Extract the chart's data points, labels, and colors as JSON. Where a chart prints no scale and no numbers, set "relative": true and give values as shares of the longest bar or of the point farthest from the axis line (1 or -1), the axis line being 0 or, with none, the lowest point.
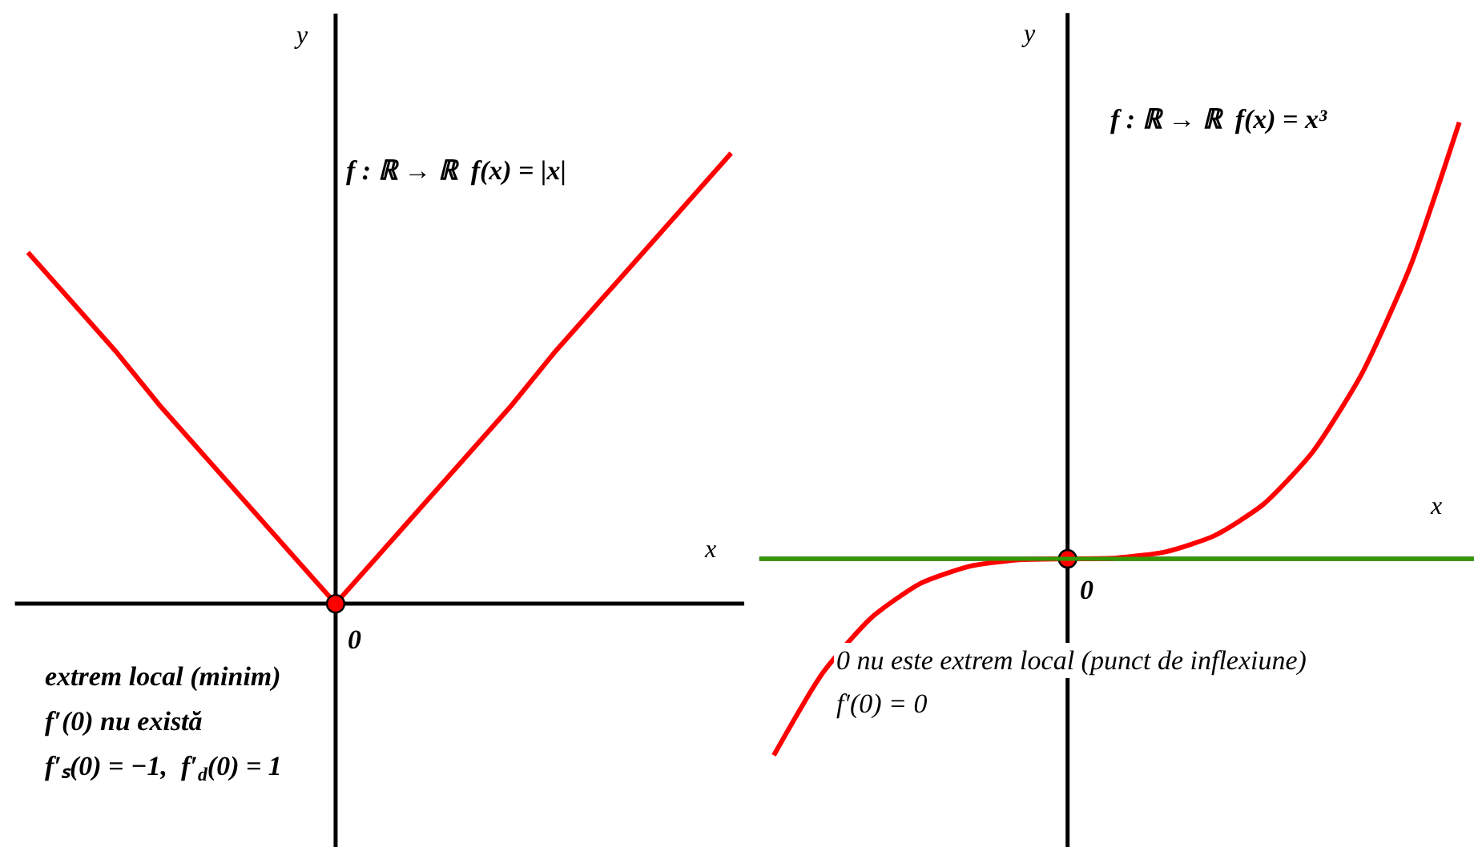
{
  "chart_data": [
    {
      "type": "line",
      "title": "f : ℝ → ℝ  f(x) = |x|",
      "xlabel": "x",
      "ylabel": "y",
      "relative": true,
      "grid": false,
      "categories": [
        null,
        null,
        null,
        null,
        null,
        null,
        null,
        null,
        null,
        null,
        null,
        null,
        null,
        null,
        null,
        null,
        null
      ],
      "series": [
        {
          "color": "#ff0000",
          "values": [
            0.78,
            0.67,
            0.56,
            0.44,
            0.33,
            0.22,
            0.11,
            0,
            0.11,
            0.22,
            0.33,
            0.44,
            0.56,
            0.67,
            0.78,
            0.89,
            1
          ]
        }
      ],
      "annotations": [
        "0",
        "extrem local (minim)",
        "f′(0) nu există",
        "f′ₛ(0) = −1,  f′$_{d}$(0) = 1"
      ]
    },
    {
      "type": "line",
      "title": "f : ℝ → ℝ  f(x) = x³",
      "xlabel": "x",
      "ylabel": "y",
      "relative": true,
      "grid": false,
      "categories": [
        null,
        null,
        null,
        null,
        null,
        null,
        null,
        null,
        null,
        null,
        null,
        null,
        null,
        null,
        null
      ],
      "series": [
        {
          "color": "#ff0000",
          "values": [
            -0.45,
            -0.261,
            -0.134,
            -0.056,
            -0.017,
            -0.002,
            0,
            0.002,
            0.016,
            0.053,
            0.125,
            0.244,
            0.422,
            0.67,
            1
          ]
        }
      ],
      "ref_lines": [
        {
          "axis": "y",
          "value": 0,
          "color": "#339900"
        }
      ],
      "annotations": [
        "0",
        "0 nu este extrem local (punct de inflexiune)",
        "f′(0) = 0"
      ]
    }
  ]
}
